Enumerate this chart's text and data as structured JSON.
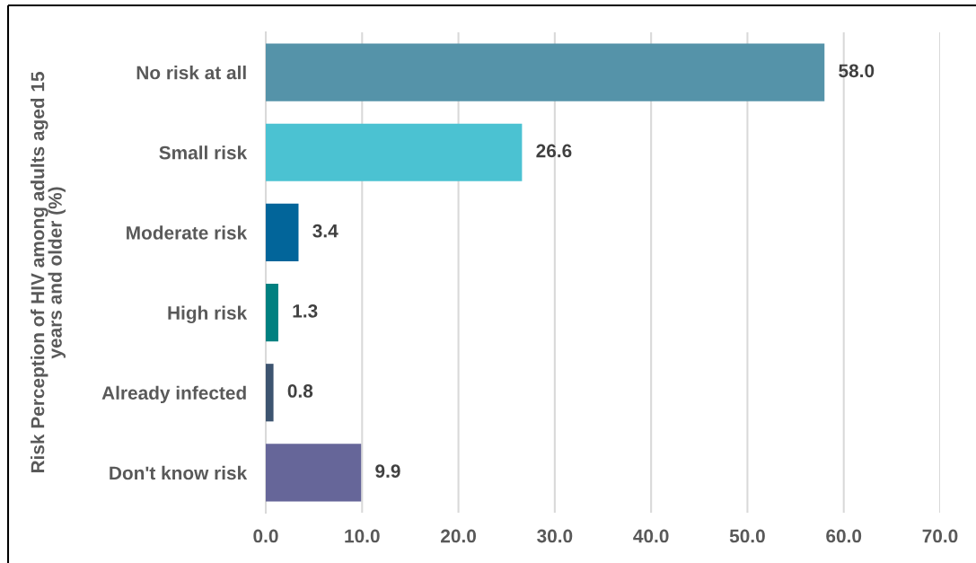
{
  "chart_data": {
    "type": "bar",
    "orientation": "horizontal",
    "ylabel": "Risk Perception of HIV among adults aged 15\nyears and older (%)",
    "categories": [
      "No risk at all",
      "Small risk",
      "Moderate risk",
      "High risk",
      "Already infected",
      "Don't know risk"
    ],
    "values": [
      58.0,
      26.6,
      3.4,
      1.3,
      0.8,
      9.9
    ],
    "value_labels": [
      "58.0",
      "26.6",
      "3.4",
      "1.3",
      "0.8",
      "9.9"
    ],
    "colors": [
      "#5593a9",
      "#4bc2d2",
      "#02659a",
      "#008080",
      "#3d5470",
      "#666699"
    ],
    "xlim": [
      0,
      70
    ],
    "xticks": [
      {
        "value": 0,
        "label": "0.0"
      },
      {
        "value": 10,
        "label": "10.0"
      },
      {
        "value": 20,
        "label": "20.0"
      },
      {
        "value": 30,
        "label": "30.0"
      },
      {
        "value": 40,
        "label": "40.0"
      },
      {
        "value": 50,
        "label": "50.0"
      },
      {
        "value": 60,
        "label": "60.0"
      },
      {
        "value": 70,
        "label": "70.0"
      }
    ],
    "grid": "x"
  }
}
